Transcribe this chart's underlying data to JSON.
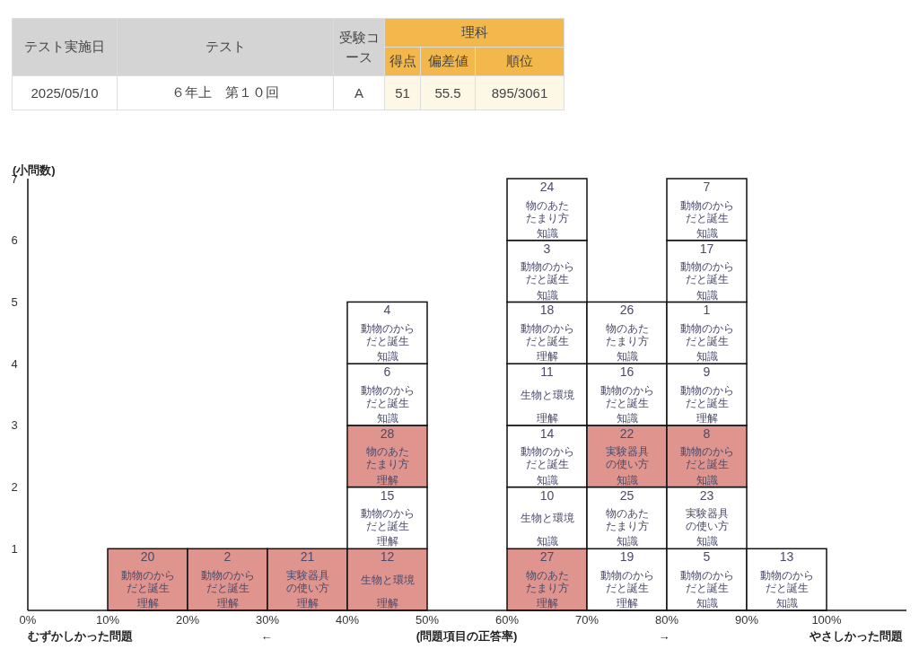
{
  "chart_data": [
    {
      "type": "other",
      "annotations": [
        "テスト実施日",
        "テスト",
        "受験コース",
        "理科",
        "得点",
        "偏差値",
        "順位",
        "2025/05/10",
        "６年上　第１０回",
        "A",
        "51",
        "55.5",
        "895/3061"
      ]
    },
    {
      "type": "bar",
      "stacked": true,
      "xlim": [
        0,
        110
      ],
      "ylim": [
        0,
        7
      ],
      "ylabel": "(小問数)",
      "xlabel": "(問題項目の正答率)",
      "xticks": [
        {
          "value": 0,
          "label": "0%"
        },
        {
          "value": 10,
          "label": "10%"
        },
        {
          "value": 20,
          "label": "20%"
        },
        {
          "value": 30,
          "label": "30%"
        },
        {
          "value": 40,
          "label": "40%"
        },
        {
          "value": 50,
          "label": "50%"
        },
        {
          "value": 60,
          "label": "60%"
        },
        {
          "value": 70,
          "label": "70%"
        },
        {
          "value": 80,
          "label": "80%"
        },
        {
          "value": 90,
          "label": "90%"
        },
        {
          "value": 100,
          "label": "100%"
        }
      ],
      "yticks": [
        1,
        2,
        3,
        4,
        5,
        6,
        7
      ],
      "series": [
        {
          "x": [
            15,
            25,
            35,
            45,
            65,
            75,
            85,
            95
          ],
          "values": [
            1,
            1,
            1,
            1,
            1,
            1,
            1,
            1
          ],
          "colors": [
            "#e0948e",
            "#e0948e",
            "#e0948e",
            "#e0948e",
            "#e0948e",
            "#ffffff",
            "#ffffff",
            "#ffffff"
          ]
        },
        {
          "x": [
            45,
            65,
            75,
            85
          ],
          "values": [
            1,
            1,
            1,
            1
          ],
          "colors": [
            "#ffffff",
            "#ffffff",
            "#ffffff",
            "#ffffff"
          ]
        },
        {
          "x": [
            45,
            65,
            75,
            85
          ],
          "values": [
            1,
            1,
            1,
            1
          ],
          "colors": [
            "#e0948e",
            "#ffffff",
            "#e0948e",
            "#e0948e"
          ]
        },
        {
          "x": [
            45,
            65,
            75,
            85
          ],
          "values": [
            1,
            1,
            1,
            1
          ],
          "colors": [
            "#ffffff",
            "#ffffff",
            "#ffffff",
            "#ffffff"
          ]
        },
        {
          "x": [
            45,
            65,
            75,
            85
          ],
          "values": [
            1,
            1,
            1,
            1
          ],
          "colors": [
            "#ffffff",
            "#ffffff",
            "#ffffff",
            "#ffffff"
          ]
        },
        {
          "x": [
            65,
            85
          ],
          "values": [
            1,
            1
          ],
          "colors": [
            "#ffffff",
            "#ffffff"
          ]
        },
        {
          "x": [
            65,
            85
          ],
          "values": [
            1,
            1
          ],
          "colors": [
            "#ffffff",
            "#ffffff"
          ]
        }
      ],
      "annotations": [
        "むずかしかった問題",
        "←",
        "→",
        "やさしかった問題",
        "20",
        "動物のからだと誕生",
        "理解",
        "2",
        "動物のからだと誕生",
        "理解",
        "21",
        "実験器具の使い方",
        "理解",
        "12",
        "生物と環境",
        "理解",
        "27",
        "物のあたたまり方",
        "理解",
        "19",
        "動物のからだと誕生",
        "理解",
        "5",
        "動物のからだと誕生",
        "知識",
        "13",
        "動物のからだと誕生",
        "知識",
        "15",
        "動物のからだと誕生",
        "理解",
        "10",
        "生物と環境",
        "知識",
        "25",
        "物のあたたまり方",
        "知識",
        "23",
        "実験器具の使い方",
        "知識",
        "28",
        "物のあたたまり方",
        "理解",
        "14",
        "動物のからだと誕生",
        "知識",
        "22",
        "実験器具の使い方",
        "知識",
        "8",
        "動物のからだと誕生",
        "知識",
        "6",
        "動物のからだと誕生",
        "知識",
        "11",
        "生物と環境",
        "理解",
        "16",
        "動物のからだと誕生",
        "知識",
        "9",
        "動物のからだと誕生",
        "理解",
        "4",
        "動物のからだと誕生",
        "知識",
        "18",
        "動物のからだと誕生",
        "理解",
        "26",
        "物のあたたまり方",
        "知識",
        "1",
        "動物のからだと誕生",
        "知識",
        "3",
        "動物のからだと誕生",
        "知識",
        "17",
        "動物のからだと誕生",
        "知識",
        "24",
        "物のあたたまり方",
        "知識",
        "7",
        "動物のからだと誕生",
        "知識"
      ]
    }
  ]
}
